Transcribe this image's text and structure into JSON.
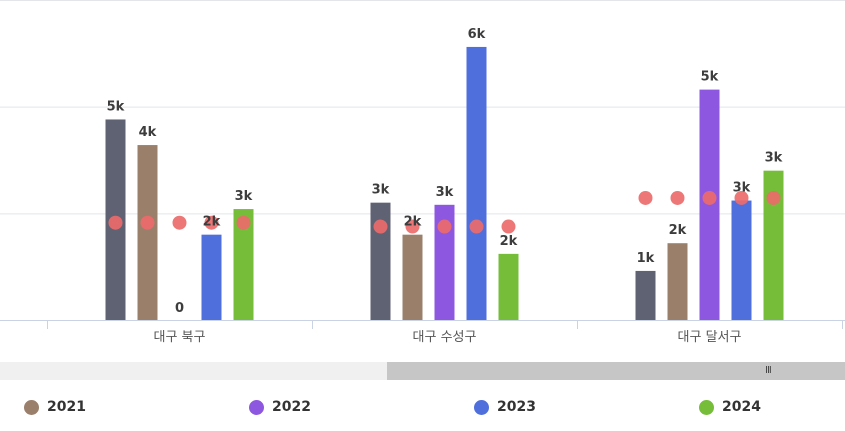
{
  "chart_data": {
    "type": "bar",
    "categories": [
      "대구 북구",
      "대구 수성구",
      "대구 달서구"
    ],
    "ylim": [
      0,
      7500
    ],
    "grid": true,
    "legend_position": "bottom",
    "series": [
      {
        "key": "s0",
        "color": "#5f6273",
        "values": [
          4700,
          2750,
          1150
        ],
        "labels": [
          "5k",
          "3k",
          "1k"
        ]
      },
      {
        "name": "2021",
        "color": "#9a7f6b",
        "values": [
          4100,
          2000,
          1800
        ],
        "labels": [
          "4k",
          "2k",
          "2k"
        ]
      },
      {
        "name": "2022",
        "color": "#8e57e0",
        "values": [
          0,
          2700,
          5400
        ],
        "labels": [
          "0",
          "3k",
          "5k"
        ]
      },
      {
        "name": "2023",
        "color": "#4f6fdc",
        "values": [
          2000,
          6400,
          2800
        ],
        "labels": [
          "2k",
          "6k",
          "3k"
        ]
      },
      {
        "name": "2024",
        "color": "#76bd3a",
        "values": [
          2600,
          1550,
          3500
        ],
        "labels": [
          "3k",
          "2k",
          "3k"
        ]
      }
    ],
    "markers": {
      "color": "#eb6a6a",
      "values": [
        [
          2280,
          2280,
          2280,
          2280,
          2280
        ],
        [
          2190,
          2190,
          2190,
          2190,
          2190
        ],
        [
          2860,
          2860,
          2860,
          2860,
          2860
        ]
      ]
    }
  },
  "legend": [
    {
      "label": "2021",
      "color": "#9a7f6b"
    },
    {
      "label": "2022",
      "color": "#8e57e0"
    },
    {
      "label": "2023",
      "color": "#4f6fdc"
    },
    {
      "label": "2024",
      "color": "#76bd3a"
    }
  ],
  "scrollbar": {
    "grip": "III"
  }
}
